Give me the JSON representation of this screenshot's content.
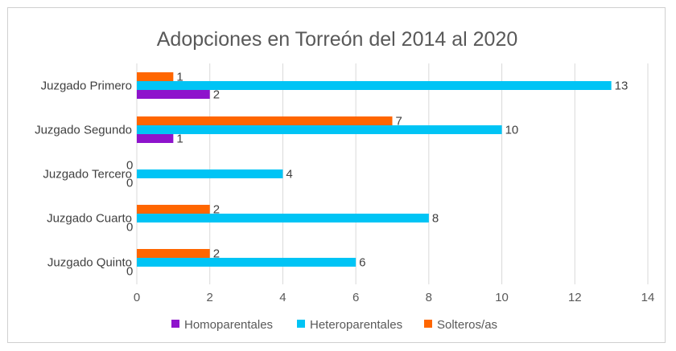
{
  "chart_data": {
    "type": "bar",
    "orientation": "horizontal",
    "title": "Adopciones en Torreón del 2014 al 2020",
    "categories": [
      "Juzgado Primero",
      "Juzgado Segundo",
      "Juzgado Tercero",
      "Juzgado Cuarto",
      "Juzgado Quinto"
    ],
    "series": [
      {
        "name": "Homoparentales",
        "color": "#8e13cc",
        "values": [
          2,
          1,
          0,
          0,
          0
        ]
      },
      {
        "name": "Heteroparentales",
        "color": "#00c4f5",
        "values": [
          13,
          10,
          4,
          8,
          6
        ]
      },
      {
        "name": "Solteros/as",
        "color": "#ff6600",
        "values": [
          1,
          7,
          0,
          2,
          2
        ]
      }
    ],
    "xlim": [
      0,
      14
    ],
    "xticks": [
      0,
      2,
      4,
      6,
      8,
      10,
      12,
      14
    ],
    "grid": "vertical",
    "legend_position": "bottom"
  }
}
